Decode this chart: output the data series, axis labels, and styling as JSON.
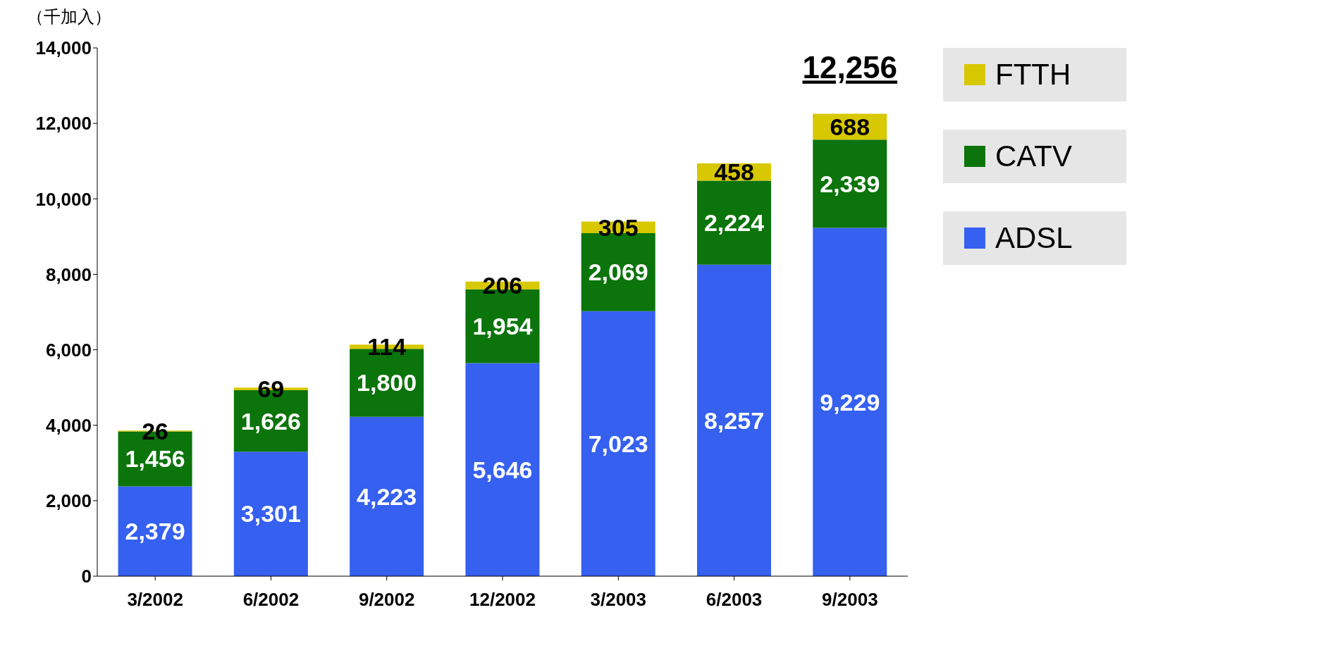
{
  "chart_data": {
    "type": "bar",
    "ylabel": "（千加入）",
    "stacked": true,
    "legend": "right",
    "grid": false,
    "categories": [
      "3/2002",
      "6/2002",
      "9/2002",
      "12/2002",
      "3/2003",
      "6/2003",
      "9/2003"
    ],
    "series": [
      {
        "name": "ADSL",
        "color": "#3560f0",
        "values": [
          2379,
          3301,
          4223,
          5646,
          7023,
          8257,
          9229
        ],
        "value_labels": [
          "2,379",
          "3,301",
          "4,223",
          "5,646",
          "7,023",
          "8,257",
          "9,229"
        ]
      },
      {
        "name": "CATV",
        "color": "#0b740b",
        "values": [
          1456,
          1626,
          1800,
          1954,
          2069,
          2224,
          2339
        ],
        "value_labels": [
          "1,456",
          "1,626",
          "1,800",
          "1,954",
          "2,069",
          "2,224",
          "2,339"
        ]
      },
      {
        "name": "FTTH",
        "color": "#d8c800",
        "values": [
          26,
          69,
          114,
          206,
          305,
          458,
          688
        ],
        "data_labels": true
      }
    ],
    "totals": [
      null,
      null,
      null,
      null,
      null,
      null,
      "12,256"
    ],
    "ylim": [
      0,
      14000
    ],
    "yticks": [
      0,
      {
        "value": 2000,
        "label": "2,000"
      },
      {
        "value": 4000,
        "label": "4,000"
      },
      {
        "value": 6000,
        "label": "6,000"
      },
      {
        "value": 8000,
        "label": "8,000"
      },
      {
        "value": 10000,
        "label": "10,000"
      },
      {
        "value": 12000,
        "label": "12,000"
      },
      {
        "value": 14000,
        "label": "14,000"
      }
    ]
  }
}
